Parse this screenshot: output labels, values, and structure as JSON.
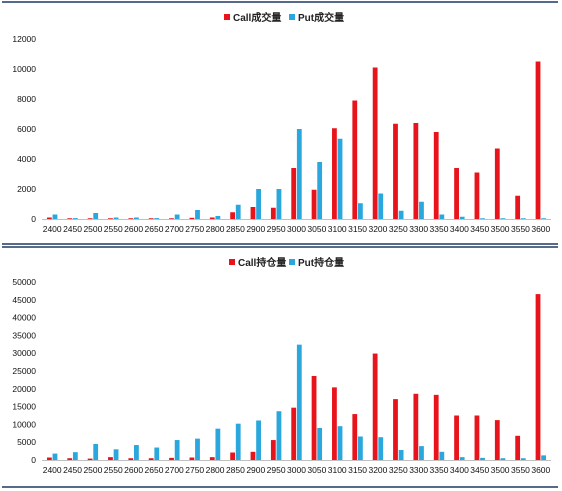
{
  "colors": {
    "call": "#e8141c",
    "put": "#2aa7dc",
    "frame": "#1f3864",
    "axis": "#c0c0c0"
  },
  "chart_data": [
    {
      "type": "bar",
      "categories": [
        "2400",
        "2450",
        "2500",
        "2550",
        "2600",
        "2650",
        "2700",
        "2750",
        "2800",
        "2850",
        "2900",
        "2950",
        "3000",
        "3050",
        "3100",
        "3150",
        "3200",
        "3250",
        "3300",
        "3350",
        "3400",
        "3450",
        "3500",
        "3550",
        "3600"
      ],
      "series": [
        {
          "name": "Call成交量",
          "values": [
            100,
            50,
            50,
            50,
            50,
            50,
            50,
            80,
            100,
            450,
            800,
            750,
            3400,
            1950,
            6050,
            7900,
            10100,
            6350,
            6400,
            5800,
            3400,
            3100,
            4700,
            1550,
            10500
          ]
        },
        {
          "name": "Put成交量",
          "values": [
            300,
            60,
            400,
            100,
            100,
            60,
            300,
            600,
            200,
            950,
            2000,
            2000,
            6000,
            3800,
            5350,
            1050,
            1700,
            550,
            1150,
            300,
            150,
            50,
            50,
            50,
            50
          ]
        }
      ],
      "ylim": [
        0,
        12000
      ],
      "yticks": [
        "0",
        "2000",
        "4000",
        "6000",
        "8000",
        "10000",
        "12000"
      ],
      "legend": "top-center",
      "grid": false
    },
    {
      "type": "bar",
      "categories": [
        "2400",
        "2450",
        "2500",
        "2550",
        "2600",
        "2650",
        "2700",
        "2750",
        "2800",
        "2850",
        "2900",
        "2950",
        "3000",
        "3050",
        "3100",
        "3150",
        "3200",
        "3250",
        "3300",
        "3350",
        "3400",
        "3450",
        "3500",
        "3550",
        "3600"
      ],
      "series": [
        {
          "name": "Call持仓量",
          "values": [
            700,
            500,
            400,
            800,
            500,
            500,
            600,
            700,
            800,
            2100,
            2300,
            5600,
            14700,
            23600,
            20400,
            12900,
            29900,
            17100,
            18600,
            18300,
            12500,
            12500,
            11200,
            6800,
            46600
          ]
        },
        {
          "name": "Put持仓量",
          "values": [
            1800,
            2200,
            4500,
            3000,
            4200,
            3500,
            5600,
            6000,
            8800,
            10200,
            11100,
            13700,
            32400,
            9000,
            9500,
            6600,
            6400,
            2800,
            3900,
            2300,
            800,
            600,
            500,
            500,
            1300
          ]
        }
      ],
      "ylim": [
        0,
        50000
      ],
      "yticks": [
        "0",
        "5000",
        "10000",
        "15000",
        "20000",
        "25000",
        "30000",
        "35000",
        "40000",
        "45000",
        "50000"
      ],
      "legend": "top-center",
      "grid": false
    }
  ]
}
